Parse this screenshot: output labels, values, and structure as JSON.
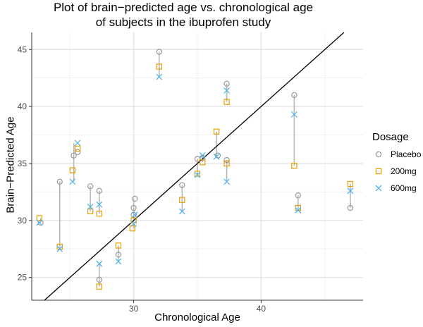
{
  "chart_data": {
    "type": "scatter",
    "title": "Plot of brain−predicted age vs. chronological age",
    "subtitle": "of subjects in the ibuprofen study",
    "xlabel": "Chronological Age",
    "ylabel": "Brain−Predicted Age",
    "xlim": [
      22,
      48
    ],
    "ylim": [
      23,
      46.5
    ],
    "xticks": [
      30,
      40
    ],
    "yticks": [
      25,
      30,
      35,
      40,
      45
    ],
    "grid": true,
    "legend": {
      "title": "Dosage",
      "position": "right"
    },
    "reference_line": {
      "type": "identity",
      "intercept": 0,
      "slope": 1
    },
    "series": [
      {
        "name": "Placebo",
        "marker": "circle",
        "color": "#999999",
        "points": [
          [
            22.7,
            29.8
          ],
          [
            24.2,
            33.4
          ],
          [
            25.3,
            35.7
          ],
          [
            25.6,
            36.0
          ],
          [
            26.6,
            33.0
          ],
          [
            27.3,
            32.6
          ],
          [
            27.3,
            24.8
          ],
          [
            28.8,
            27.0
          ],
          [
            30.0,
            30.5
          ],
          [
            30.0,
            31.1
          ],
          [
            30.1,
            31.9
          ],
          [
            32.0,
            44.8
          ],
          [
            33.8,
            33.1
          ],
          [
            35.0,
            35.4
          ],
          [
            35.4,
            35.5
          ],
          [
            36.6,
            35.7
          ],
          [
            37.3,
            35.3
          ],
          [
            37.3,
            42.0
          ],
          [
            42.6,
            41.0
          ],
          [
            42.9,
            32.2
          ],
          [
            47.0,
            31.1
          ]
        ]
      },
      {
        "name": "200mg",
        "marker": "square",
        "color": "#E69F00",
        "points": [
          [
            22.6,
            30.2
          ],
          [
            24.2,
            27.7
          ],
          [
            25.2,
            34.4
          ],
          [
            25.6,
            36.3
          ],
          [
            26.6,
            30.8
          ],
          [
            27.3,
            30.6
          ],
          [
            27.3,
            24.2
          ],
          [
            28.8,
            27.8
          ],
          [
            29.9,
            29.3
          ],
          [
            30.0,
            30.0
          ],
          [
            32.0,
            43.5
          ],
          [
            33.8,
            31.8
          ],
          [
            35.0,
            34.1
          ],
          [
            35.4,
            35.1
          ],
          [
            36.5,
            37.8
          ],
          [
            37.3,
            35.0
          ],
          [
            37.3,
            40.4
          ],
          [
            42.6,
            34.8
          ],
          [
            42.9,
            31.1
          ],
          [
            47.0,
            33.2
          ]
        ]
      },
      {
        "name": "600mg",
        "marker": "x",
        "color": "#56B4E9",
        "points": [
          [
            22.6,
            29.8
          ],
          [
            24.2,
            27.5
          ],
          [
            25.2,
            33.4
          ],
          [
            25.6,
            36.8
          ],
          [
            26.6,
            31.2
          ],
          [
            27.3,
            31.4
          ],
          [
            27.3,
            26.2
          ],
          [
            28.8,
            26.4
          ],
          [
            30.0,
            29.7
          ],
          [
            30.1,
            30.5
          ],
          [
            32.0,
            42.6
          ],
          [
            33.8,
            30.8
          ],
          [
            35.0,
            34.0
          ],
          [
            35.4,
            35.7
          ],
          [
            36.5,
            35.6
          ],
          [
            37.3,
            33.4
          ],
          [
            37.3,
            41.4
          ],
          [
            42.6,
            39.3
          ],
          [
            42.9,
            30.9
          ],
          [
            47.0,
            32.6
          ]
        ]
      }
    ],
    "subject_ranges": [
      [
        22.7,
        29.8,
        30.2
      ],
      [
        24.2,
        27.5,
        33.4
      ],
      [
        25.3,
        33.4,
        36.8
      ],
      [
        26.6,
        30.8,
        33.0
      ],
      [
        27.3,
        30.6,
        32.6
      ],
      [
        27.3,
        24.2,
        26.2
      ],
      [
        28.8,
        26.4,
        27.8
      ],
      [
        30.0,
        29.3,
        31.9
      ],
      [
        32.0,
        42.6,
        44.8
      ],
      [
        33.8,
        30.8,
        33.1
      ],
      [
        35.0,
        34.0,
        35.4
      ],
      [
        35.4,
        35.1,
        35.7
      ],
      [
        36.5,
        35.6,
        37.8
      ],
      [
        37.3,
        33.4,
        35.3
      ],
      [
        37.3,
        40.4,
        42.0
      ],
      [
        42.6,
        34.8,
        41.0
      ],
      [
        42.9,
        30.9,
        32.2
      ],
      [
        47.0,
        31.1,
        33.2
      ]
    ]
  }
}
